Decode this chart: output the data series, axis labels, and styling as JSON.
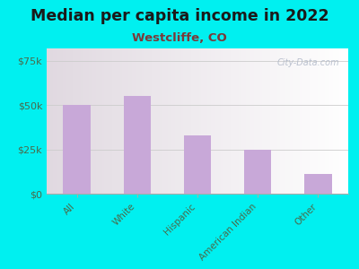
{
  "title": "Median per capita income in 2022",
  "subtitle": "Westcliffe, CO",
  "categories": [
    "All",
    "White",
    "Hispanic",
    "American Indian",
    "Other"
  ],
  "values": [
    50000,
    55000,
    33000,
    25000,
    11000
  ],
  "bar_color": "#c8a8d8",
  "background_outer": "#00f0f0",
  "title_color": "#1a1a1a",
  "subtitle_color": "#7a3a3a",
  "tick_label_color": "#4a6a4a",
  "yticks": [
    0,
    25000,
    50000,
    75000
  ],
  "ytick_labels": [
    "$0",
    "$25k",
    "$50k",
    "$75k"
  ],
  "ylim": [
    0,
    82000
  ],
  "watermark": "City-Data.com"
}
